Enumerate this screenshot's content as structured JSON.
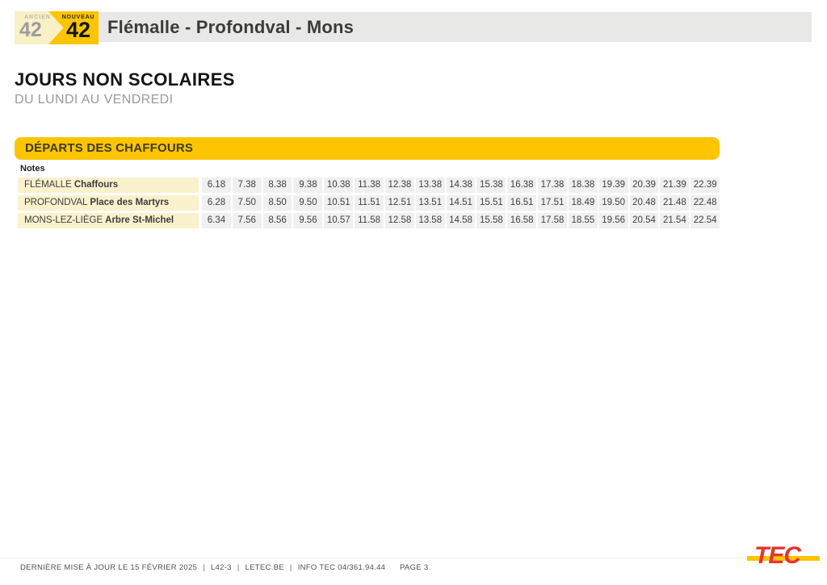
{
  "header": {
    "old_badge": {
      "label": "ANCIEN",
      "number": "42"
    },
    "new_badge": {
      "label": "NOUVEAU",
      "number": "42"
    },
    "title": "Flémalle - Profondval - Mons"
  },
  "section": {
    "heading": "JOURS NON SCOLAIRES",
    "subheading": "DU LUNDI AU VENDREDI"
  },
  "timetable": {
    "band_title": "DÉPARTS DES CHAFFOURS",
    "notes_label": "Notes",
    "rows": [
      {
        "city": "FLÉMALLE",
        "stop": "Chaffours",
        "times": [
          "6.18",
          "7.38",
          "8.38",
          "9.38",
          "10.38",
          "11.38",
          "12.38",
          "13.38",
          "14.38",
          "15.38",
          "16.38",
          "17.38",
          "18.38",
          "19.39",
          "20.39",
          "21.39",
          "22.39"
        ]
      },
      {
        "city": "PROFONDVAL",
        "stop": "Place des Martyrs",
        "times": [
          "6.28",
          "7.50",
          "8.50",
          "9.50",
          "10.51",
          "11.51",
          "12.51",
          "13.51",
          "14.51",
          "15.51",
          "16.51",
          "17.51",
          "18.49",
          "19.50",
          "20.48",
          "21.48",
          "22.48"
        ]
      },
      {
        "city": "MONS-LEZ-LIÈGE",
        "stop": "Arbre St-Michel",
        "times": [
          "6.34",
          "7.56",
          "8.56",
          "9.56",
          "10.57",
          "11.58",
          "12.58",
          "13.58",
          "14.58",
          "15.58",
          "16.58",
          "17.58",
          "18.55",
          "19.56",
          "20.54",
          "21.54",
          "22.54"
        ]
      }
    ]
  },
  "footer": {
    "update_text": "DERNIÈRE MISE À JOUR LE 15 FÉVRIER 2025",
    "line_code": "L42-3",
    "website": "LETEC.BE",
    "info": "INFO TEC 04/361.94.44",
    "separator": "|",
    "page": "PAGE 3",
    "logo_text": "TEC"
  },
  "colors": {
    "brand_yellow": "#FCC500",
    "badge_cream": "#FAF0C5",
    "label_cell_cream": "#FAF1CD",
    "time_cell_gray": "#F0F0F0",
    "title_bar_gray": "#E8E8E7",
    "logo_red": "#E5352E"
  }
}
